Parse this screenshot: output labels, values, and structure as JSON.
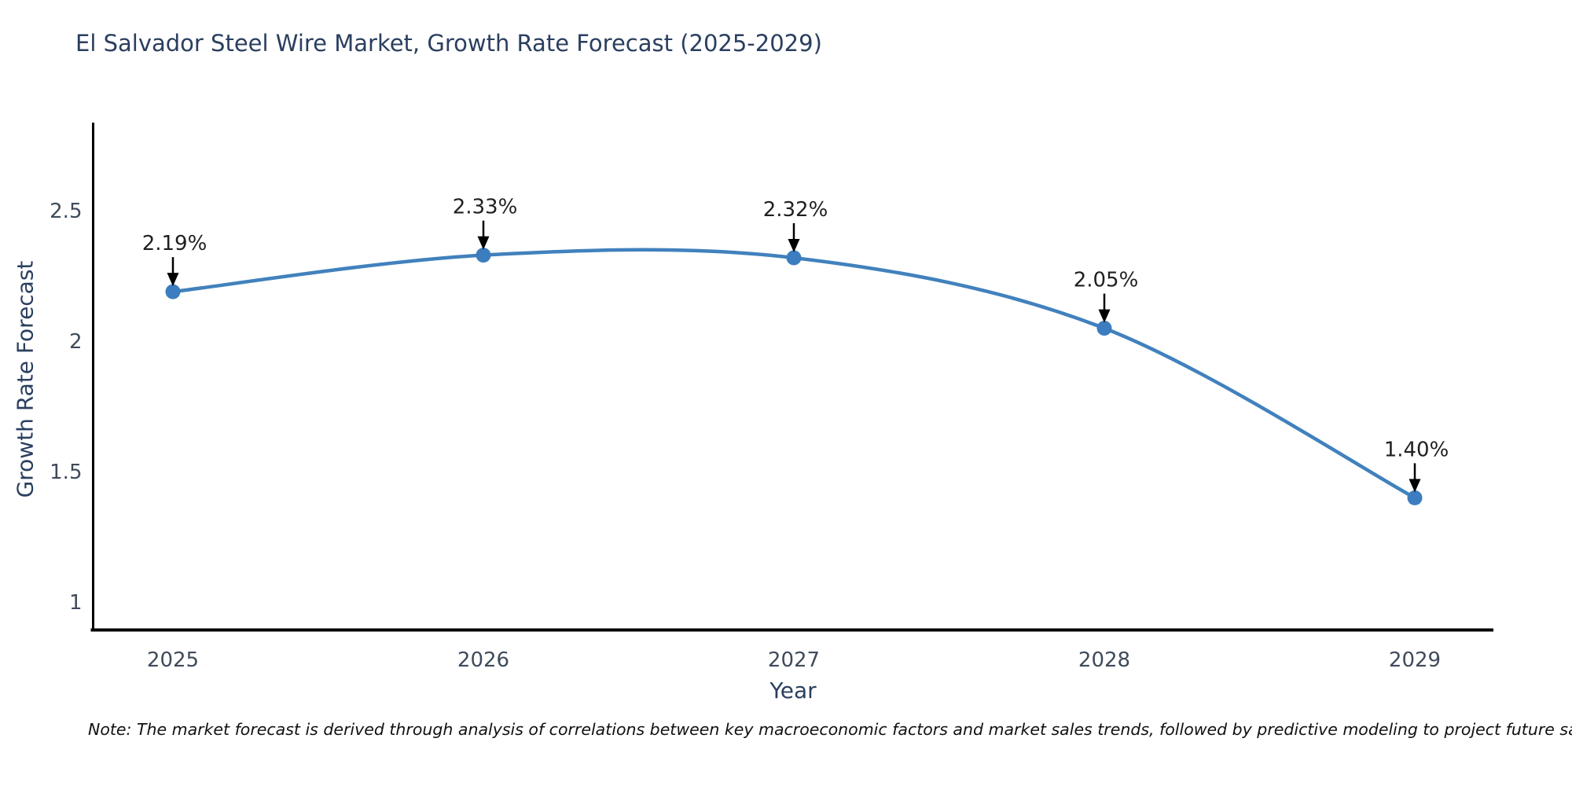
{
  "title": "El Salvador Steel Wire Market, Growth Rate Forecast (2025-2029)",
  "note": "Note: The market forecast is derived through analysis of correlations between key macroeconomic factors and market sales trends, followed by predictive modeling to project future sales",
  "chart_data": {
    "type": "line",
    "title": "El Salvador Steel Wire Market, Growth Rate Forecast (2025-2029)",
    "xlabel": "Year",
    "ylabel": "Growth Rate Forecast",
    "categories": [
      "2025",
      "2026",
      "2027",
      "2028",
      "2029"
    ],
    "series": [
      {
        "name": "Growth Rate Forecast",
        "values": [
          2.19,
          2.33,
          2.32,
          2.05,
          1.4
        ],
        "point_labels": [
          "2.19%",
          "2.33%",
          "2.32%",
          "2.05%",
          "1.40%"
        ]
      }
    ],
    "yticks": [
      1,
      1.5,
      2,
      2.5
    ],
    "ytick_labels": [
      "1",
      "1.5",
      "2",
      "2.5"
    ],
    "ylim": [
      0.895,
      2.835
    ],
    "grid": false,
    "legend": false,
    "line_shape": "spline",
    "annotation_arrows": true,
    "colors": {
      "line": "#4181bd",
      "marker": "#3c7dbf",
      "axis": "#000000",
      "tick_label": "#3f4b5b",
      "annotation_text": "#1f1f1f",
      "arrow": "#000000",
      "title": "#2a3f5f"
    }
  }
}
